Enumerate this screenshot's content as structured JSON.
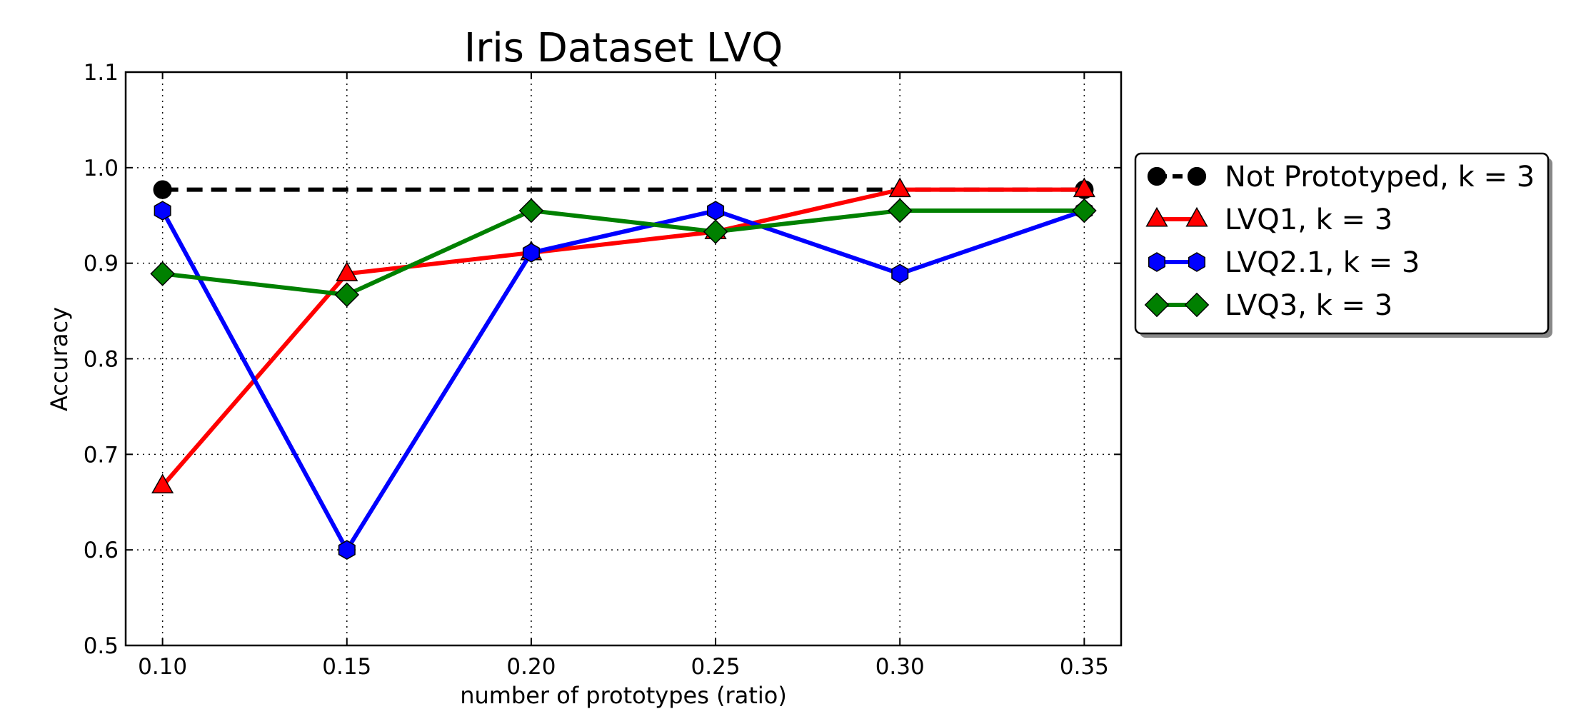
{
  "chart_data": {
    "type": "line",
    "title": "Iris Dataset LVQ",
    "xlabel": "number of prototypes (ratio)",
    "ylabel": "Accuracy",
    "x": [
      0.1,
      0.15,
      0.2,
      0.25,
      0.3,
      0.35
    ],
    "xticks": [
      "0.10",
      "0.15",
      "0.20",
      "0.25",
      "0.30",
      "0.35"
    ],
    "yticks": [
      "0.5",
      "0.6",
      "0.7",
      "0.8",
      "0.9",
      "1.0",
      "1.1"
    ],
    "xlim": [
      0.09,
      0.36
    ],
    "ylim": [
      0.5,
      1.1
    ],
    "grid": true,
    "legend_position": "outside-right",
    "series": [
      {
        "name": "Not Prototyped, k = 3",
        "color": "#000000",
        "line_style": "dashed",
        "marker": "circle",
        "x": [
          0.1,
          0.35
        ],
        "values": [
          0.977,
          0.977
        ]
      },
      {
        "name": "LVQ1, k = 3",
        "color": "#ff0000",
        "line_style": "solid",
        "marker": "triangle",
        "x": [
          0.1,
          0.15,
          0.2,
          0.25,
          0.3,
          0.35
        ],
        "values": [
          0.667,
          0.889,
          0.911,
          0.933,
          0.977,
          0.977
        ]
      },
      {
        "name": "LVQ2.1, k = 3",
        "color": "#0000ff",
        "line_style": "solid",
        "marker": "hexagon",
        "x": [
          0.1,
          0.15,
          0.2,
          0.25,
          0.3,
          0.35
        ],
        "values": [
          0.955,
          0.6,
          0.911,
          0.955,
          0.889,
          0.955
        ]
      },
      {
        "name": "LVQ3, k = 3",
        "color": "#008000",
        "line_style": "solid",
        "marker": "diamond",
        "x": [
          0.1,
          0.15,
          0.2,
          0.25,
          0.3,
          0.35
        ],
        "values": [
          0.889,
          0.867,
          0.955,
          0.933,
          0.955,
          0.955
        ]
      }
    ]
  }
}
